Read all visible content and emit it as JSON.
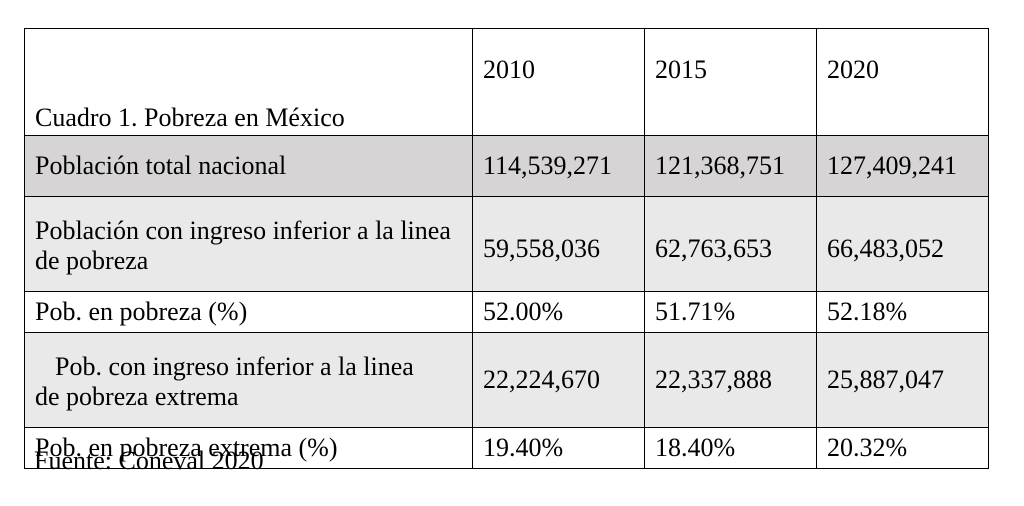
{
  "table": {
    "title": "Cuadro 1. Pobreza en México",
    "years": [
      "2010",
      "2015",
      "2020"
    ],
    "rows": [
      {
        "label": "Población total nacional",
        "values": [
          "114,539,271",
          "121,368,751",
          "127,409,241"
        ]
      },
      {
        "label": "Población con ingreso inferior a la linea de pobreza",
        "values": [
          "59,558,036",
          "62,763,653",
          "66,483,052"
        ]
      },
      {
        "label": "Pob. en pobreza (%)",
        "values": [
          "52.00%",
          "51.71%",
          "52.18%"
        ]
      },
      {
        "label_line1": "Pob. con ingreso inferior a la linea",
        "label_line2": "de pobreza extrema",
        "values": [
          "22,224,670",
          "22,337,888",
          "25,887,047"
        ]
      },
      {
        "label": "Pob. en pobreza extrema (%)",
        "values": [
          "19.40%",
          "18.40%",
          "20.32%"
        ]
      }
    ],
    "shading": {
      "row_total": "#d6d4d4",
      "row_alt": "#eae9ea"
    }
  },
  "source": "Fuente: Coneval 2020"
}
